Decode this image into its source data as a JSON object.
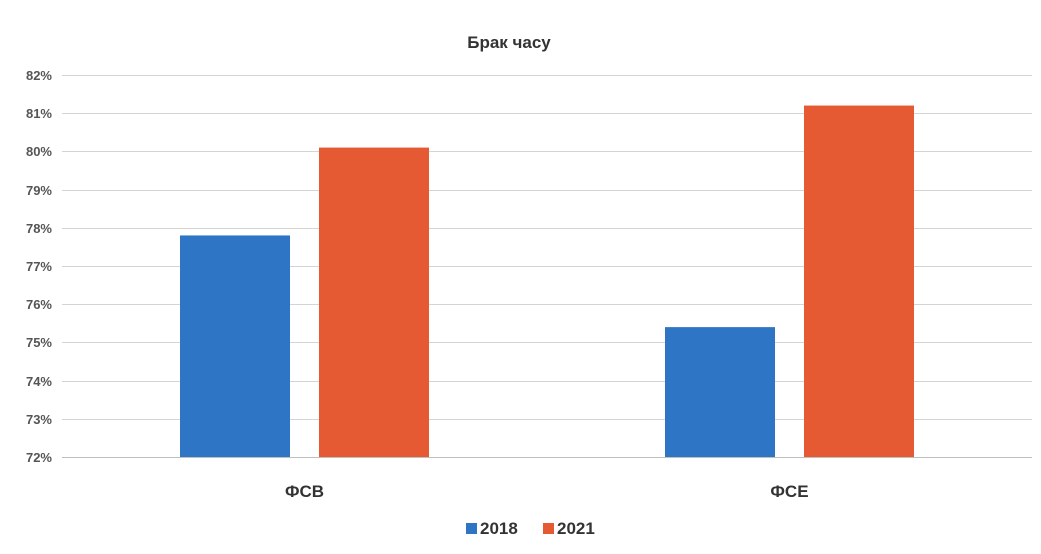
{
  "chart_data": {
    "type": "bar",
    "title": "Брак часу",
    "xlabel": "",
    "ylabel": "",
    "categories": [
      "ФСВ",
      "ФСЕ"
    ],
    "series": [
      {
        "name": "2018",
        "values": [
          77.8,
          75.4
        ],
        "color": "#2e75c6"
      },
      {
        "name": "2021",
        "values": [
          80.1,
          81.2
        ],
        "color": "#e55a32"
      }
    ],
    "ylim": [
      72,
      82
    ],
    "yticks": [
      72,
      73,
      74,
      75,
      76,
      77,
      78,
      79,
      80,
      81,
      82
    ],
    "ytick_labels": [
      "72%",
      "73%",
      "74%",
      "75%",
      "76%",
      "77%",
      "78%",
      "79%",
      "80%",
      "81%",
      "82%"
    ],
    "grid": true,
    "legend_position": "bottom"
  }
}
